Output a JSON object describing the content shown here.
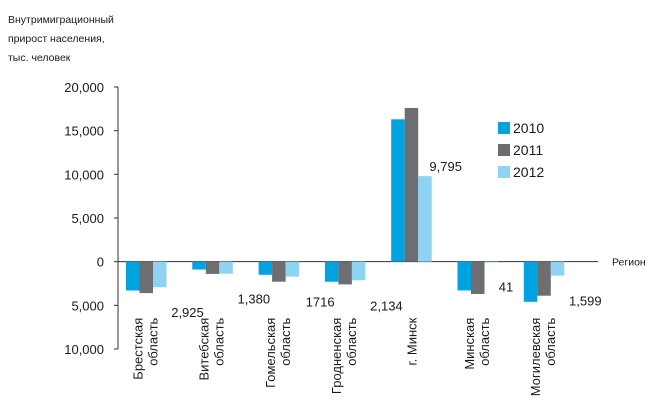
{
  "chart_data": {
    "type": "bar",
    "ylabel": [
      "Внутримиграционный",
      "прирост населения,",
      "тыс. человек"
    ],
    "xlabel": "Регион",
    "ylim": [
      -10000,
      20000
    ],
    "yticks": [
      20000,
      15000,
      10000,
      5000,
      0,
      -5000,
      -10000
    ],
    "ytick_labels": [
      "20,000",
      "15,000",
      "10,000",
      "5,000",
      "0",
      "5,000",
      "10,000"
    ],
    "categories": [
      [
        "Брестская",
        "область"
      ],
      [
        "Витебская",
        "область"
      ],
      [
        "Гомельская",
        "область"
      ],
      [
        "Гродненская",
        "область"
      ],
      [
        "г. Минск"
      ],
      [
        "Минская",
        "область"
      ],
      [
        "Могилевская",
        "область"
      ]
    ],
    "series": [
      {
        "name": "2010",
        "color": "#00a3e0",
        "values": [
          -3300,
          -900,
          -1500,
          -2300,
          16300,
          -3300,
          -4600
        ]
      },
      {
        "name": "2011",
        "color": "#6d6e71",
        "values": [
          -3600,
          -1400,
          -2300,
          -2600,
          17600,
          -3700,
          -3900
        ]
      },
      {
        "name": "2012",
        "color": "#8fd3f2",
        "values": [
          -2925,
          -1380,
          -1716,
          -2134,
          9795,
          -41,
          -1599
        ]
      }
    ],
    "data_labels": [
      "2,925",
      "1,380",
      "1716",
      "2,134",
      "9,795",
      "41",
      "1,599"
    ],
    "legend": {
      "position": "right",
      "entries": [
        "2010",
        "2011",
        "2012"
      ]
    },
    "grid": false
  }
}
